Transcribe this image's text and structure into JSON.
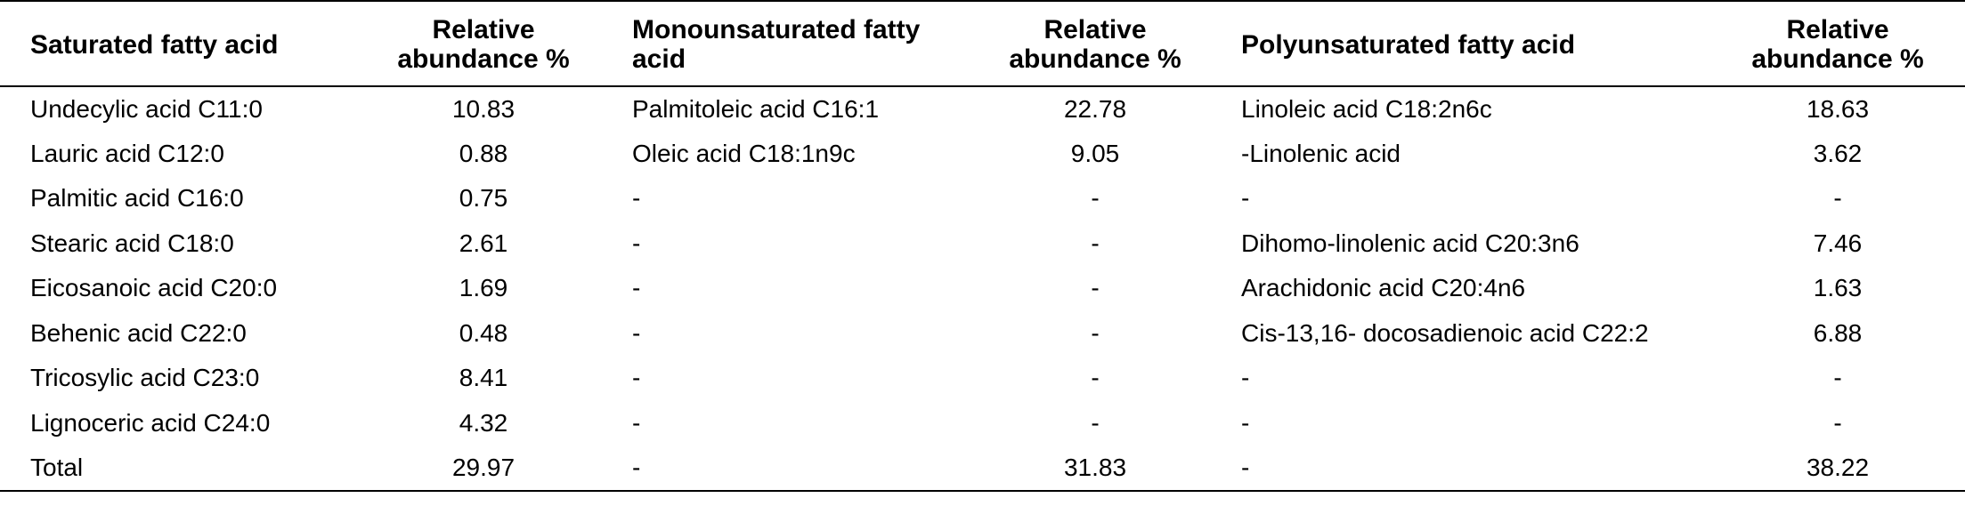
{
  "table": {
    "headers": {
      "saturated": "Saturated fatty acid",
      "saturated_abundance_line1": "Relative",
      "saturated_abundance_line2": "abundance %",
      "mono_line1": "Monounsaturated fatty",
      "mono_line2": "acid",
      "mono_abundance_line1": "Relative",
      "mono_abundance_line2": "abundance %",
      "poly": "Polyunsaturated fatty acid",
      "poly_abundance_line1": "Relative",
      "poly_abundance_line2": "abundance %"
    },
    "rows": [
      {
        "sat": "Undecylic acid C11:0",
        "sat_val": "10.83",
        "mono": "Palmitoleic acid C16:1",
        "mono_val": "22.78",
        "poly": "Linoleic acid C18:2n6c",
        "poly_val": "18.63"
      },
      {
        "sat": "Lauric acid C12:0",
        "sat_val": "0.88",
        "mono": "Oleic acid C18:1n9c",
        "mono_val": "9.05",
        "poly": "-Linolenic acid",
        "poly_val": "3.62"
      },
      {
        "sat": "Palmitic acid C16:0",
        "sat_val": "0.75",
        "mono": "-",
        "mono_val": "-",
        "poly": "-",
        "poly_val": "-"
      },
      {
        "sat": "Stearic acid C18:0",
        "sat_val": "2.61",
        "mono": "-",
        "mono_val": "-",
        "poly": "Dihomo-linolenic acid C20:3n6",
        "poly_val": "7.46"
      },
      {
        "sat": "Eicosanoic acid C20:0",
        "sat_val": "1.69",
        "mono": "-",
        "mono_val": "-",
        "poly": "Arachidonic acid C20:4n6",
        "poly_val": "1.63"
      },
      {
        "sat": "Behenic acid C22:0",
        "sat_val": "0.48",
        "mono": "-",
        "mono_val": "-",
        "poly": "Cis-13,16- docosadienoic acid C22:2",
        "poly_val": "6.88"
      },
      {
        "sat": "Tricosylic acid C23:0",
        "sat_val": "8.41",
        "mono": "-",
        "mono_val": "-",
        "poly": "-",
        "poly_val": "-"
      },
      {
        "sat": "Lignoceric acid C24:0",
        "sat_val": "4.32",
        "mono": "-",
        "mono_val": "-",
        "poly": "-",
        "poly_val": "-"
      },
      {
        "sat": "Total",
        "sat_val": "29.97",
        "mono": "-",
        "mono_val": "31.83",
        "poly": "-",
        "poly_val": "38.22"
      }
    ]
  }
}
